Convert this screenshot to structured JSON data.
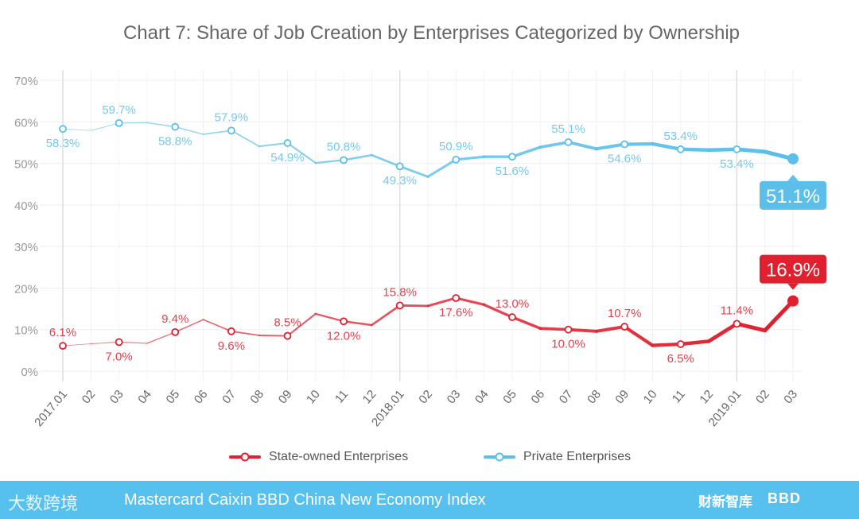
{
  "chart_data": {
    "type": "line",
    "title": "Chart 7: Share of Job Creation by Enterprises Categorized by Ownership",
    "xlabel": "",
    "ylabel": "",
    "ylim": [
      0,
      70
    ],
    "yticks": [
      "0%",
      "10%",
      "20%",
      "30%",
      "40%",
      "50%",
      "60%",
      "70%"
    ],
    "categories": [
      "2017.01",
      "02",
      "03",
      "04",
      "05",
      "06",
      "07",
      "08",
      "09",
      "10",
      "11",
      "12",
      "2018.01",
      "02",
      "03",
      "04",
      "05",
      "06",
      "07",
      "08",
      "09",
      "10",
      "11",
      "12",
      "2019.01",
      "02",
      "03"
    ],
    "grid": true,
    "legend_position": "bottom",
    "series": [
      {
        "name": "State-owned Enterprises",
        "color": "#e0202e",
        "values": [
          6.1,
          6.6,
          7.0,
          6.7,
          9.4,
          12.4,
          9.6,
          8.6,
          8.5,
          13.8,
          12.0,
          11.1,
          15.8,
          15.7,
          17.6,
          16.0,
          13.0,
          10.3,
          10.0,
          9.6,
          10.7,
          6.2,
          6.5,
          7.2,
          11.4,
          9.8,
          16.9
        ],
        "labels": [
          "6.1%",
          null,
          "7.0%",
          null,
          "9.4%",
          null,
          "9.6%",
          null,
          "8.5%",
          null,
          "12.0%",
          null,
          "15.8%",
          null,
          "17.6%",
          null,
          "13.0%",
          null,
          "10.0%",
          null,
          "10.7%",
          null,
          "6.5%",
          null,
          "11.4%",
          null,
          "16.9%"
        ]
      },
      {
        "name": "Private Enterprises",
        "color": "#5bbfea",
        "values": [
          58.3,
          57.9,
          59.7,
          59.8,
          58.8,
          57.0,
          57.9,
          54.1,
          54.9,
          50.1,
          50.8,
          52.0,
          49.3,
          46.8,
          50.9,
          51.6,
          51.6,
          53.9,
          55.1,
          53.5,
          54.6,
          54.7,
          53.4,
          53.2,
          53.4,
          52.8,
          51.1
        ],
        "labels": [
          "58.3%",
          null,
          "59.7%",
          null,
          "58.8%",
          null,
          "57.9%",
          null,
          "54.9%",
          null,
          "50.8%",
          null,
          "49.3%",
          null,
          "50.9%",
          null,
          "51.6%",
          null,
          "55.1%",
          null,
          "54.6%",
          null,
          "53.4%",
          null,
          "53.4%",
          null,
          "51.1%"
        ]
      }
    ]
  },
  "footer": {
    "text": "Mastercard Caixin BBD China New Economy Index",
    "logo_left": "大数跨境",
    "logo_caixin": "财新智库",
    "logo_bbd": "BBD"
  }
}
